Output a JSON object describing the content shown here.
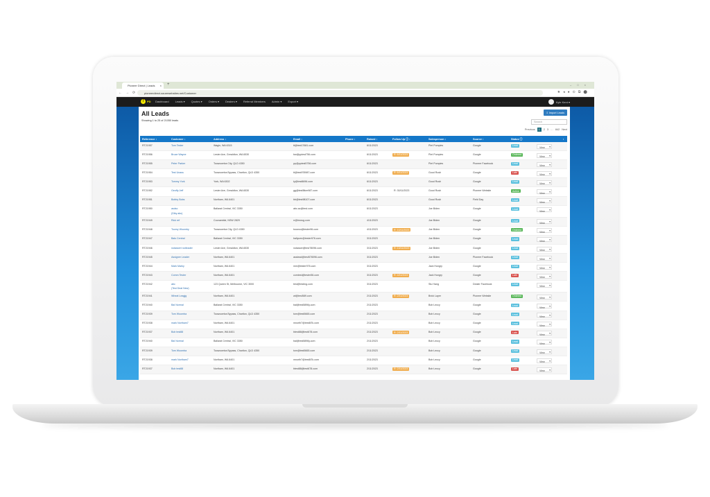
{
  "browser": {
    "tab_title": "Pioneer Direct | Leads",
    "url": "pioneerdirect.azurewebsites.net/Customer"
  },
  "nav": {
    "brand": "PD",
    "items": [
      "Dashboard",
      "Leads ▾",
      "Quotes ▾",
      "Orders ▾",
      "Dealers ▾",
      "Referral Members",
      "Admin ▾",
      "Export ▾"
    ],
    "user": "Kyle Kent ▾"
  },
  "page": {
    "title": "All Leads",
    "showing": "Showing 1 to 25 of 21050 leads",
    "import_label": "Import Leads",
    "search_placeholder": "Search"
  },
  "pager": {
    "prev": "Previous",
    "pages": [
      "1",
      "2",
      "3",
      "…",
      "842"
    ],
    "next": "Next",
    "current": "1"
  },
  "columns": [
    "Reference ↕",
    "Customer ↕",
    "Address ↕",
    "Email ↕",
    "Phone ↕",
    "Raised ↕",
    "Follow Up ⓘ ↕",
    "Salesperson ↕",
    "Source ↕",
    "Status ⓘ"
  ],
  "status_colors": {
    "Lead": "#5bc0de",
    "Ordered": "#5cb85c",
    "Late": "#d9534f",
    "Active": "#5cb85c"
  },
  "view_label": "View",
  "rows": [
    [
      "RT21957",
      "Tom Tester",
      "",
      "Wagin, WA 6315",
      "tt@test17681.com",
      "",
      "6/11/2023",
      "",
      "Piet Pumpies",
      "Google",
      "Lead"
    ],
    [
      "RT21956",
      "Bruce Wayne",
      "",
      "Lester Ave, Geraldton, WA 6530",
      "bw@pptest756.com",
      "",
      "6/11/2023",
      "R: 6/11/2023",
      "Piet Pumpies",
      "Google",
      "Ordered"
    ],
    [
      "RT21955",
      "Peter Parker",
      "",
      "Toowoomba City, QLD 4350",
      "pp@pptest5756.com",
      "",
      "6/11/2023",
      "",
      "Piet Pumpies",
      "Pioneer Facebook",
      "Lead"
    ],
    [
      "RT21954",
      "Test Unass",
      "",
      "Toowoomba Bypass, Charlton, QLD 4350",
      "tt@test978987.com",
      "",
      "6/11/2023",
      "R: 6/11/2023",
      "Good Rush",
      "Google",
      "Late"
    ],
    [
      "RT21953",
      "Tommy York",
      "",
      "York, WA 6302",
      "ty@test8696.com",
      "",
      "6/11/2023",
      "",
      "Good Rush",
      "Google",
      "Lead"
    ],
    [
      "RT21952",
      "Geoffy Jeff",
      "",
      "Lester Ave, Geraldton, WA 6530",
      "gg@test5tkm987.com",
      "",
      "6/11/2023",
      "R: 30/11/2023",
      "Good Rush",
      "Pioneer Website",
      "Active"
    ],
    [
      "RT21951",
      "Bobby Bobs",
      "",
      "Northam, WA 6401",
      "bb@test98107.com",
      "",
      "6/11/2023",
      "",
      "Good Rush",
      "Field Day",
      "Lead"
    ],
    [
      "RT21950",
      "asdsc",
      "(Diby abc)",
      "Ballarat Central, VIC 3350",
      "abc.ac@test.com",
      "",
      "6/11/2023",
      "",
      "Joe Biden",
      "Google",
      "Lead"
    ],
    [
      "RT21949",
      "Rick ref",
      "",
      "Coonamble, NSW 2829",
      "rr@trwrug.com",
      "",
      "4/11/2023",
      "",
      "Joe Biden",
      "Google",
      "Lead"
    ],
    [
      "RT21948",
      "Toomy Woomby",
      "",
      "Toowoomba City, QLD 4350",
      "toowoo@tester96.com",
      "",
      "4/11/2023",
      "R: 10/11/2023",
      "Joe Biden",
      "Google",
      "Ordered"
    ],
    [
      "RT21947",
      "Bals Central",
      "",
      "Ballarat Central, VIC 3350",
      "ballycen@tester976.com",
      "",
      "3/11/2023",
      "",
      "Joe Biden",
      "Google",
      "Lead"
    ],
    [
      "RT21946",
      "notassert notleader",
      "",
      "Lester Ave, Geraldton, WA 6530",
      "notasser@test78096.com",
      "",
      "3/11/2023",
      "R: 13/11/2023",
      "Joe Biden",
      "Google",
      "Lead"
    ],
    [
      "RT21945",
      "Assigner Leader",
      "",
      "Northam, WA 6401",
      "asslead@test578096.com",
      "",
      "3/11/2023",
      "",
      "Joe Biden",
      "Pioneer Facebook",
      "Lead"
    ],
    [
      "RT21944",
      "Mark Marky",
      "",
      "Northam, WA 6401",
      "mm@tester976.com",
      "",
      "3/11/2023",
      "",
      "Jack Hungry",
      "Google",
      "Lead"
    ],
    [
      "RT21943",
      "Comm Tester",
      "",
      "Northam, WA 6401",
      "comtest@tester56.com",
      "",
      "3/11/2023",
      "R: 4/11/2023",
      "Jack Hungry",
      "Google",
      "Late"
    ],
    [
      "RT21942",
      "abc",
      "(Test Deal New)",
      "123 Queen St, Melbourne, VIC 3000",
      "test@testing.com",
      "",
      "3/11/2023",
      "",
      "Stu Hang",
      "Dealer Facebook",
      "Lead"
    ],
    [
      "RT21941",
      "Wheat Leagjg",
      "",
      "Northam, WA 6401",
      "wl@test589.com",
      "",
      "2/11/2023",
      "R: 2/11/2023",
      "Brick Layer",
      "Pioneer Website",
      "Ordered"
    ],
    [
      "RT21940",
      "Bal Normal",
      "",
      "Ballarat Central, VIC 3350",
      "bal@test5896y.com",
      "",
      "2/11/2023",
      "",
      "Bob Leccy",
      "Google",
      "Lead"
    ],
    [
      "RT21939",
      "Tom Woomba",
      "",
      "Toowoomba Bypass, Charlton, QLD 4350",
      "tom@test5665.com",
      "",
      "2/11/2023",
      "",
      "Bob Leccy",
      "Google",
      "Lead"
    ],
    [
      "RT21938",
      "mark Northam7",
      "",
      "Northam, WA 6401",
      "mnorth7@test6l7k.com",
      "",
      "2/11/2023",
      "",
      "Bob Leccy",
      "Google",
      "Lead"
    ],
    [
      "RT21937",
      "Bob test88",
      "",
      "Northam, WA 6401",
      "btest88@test678.com",
      "",
      "2/11/2023",
      "R: 2/11/2023",
      "Bob Leccy",
      "Google",
      "Late"
    ],
    [
      "RT21940",
      "Bal Normal",
      "",
      "Ballarat Central, VIC 3350",
      "bal@test5896y.com",
      "",
      "2/11/2023",
      "",
      "Bob Leccy",
      "Google",
      "Lead"
    ],
    [
      "RT21939",
      "Tom Woomba",
      "",
      "Toowoomba Bypass, Charlton, QLD 4350",
      "tom@test5665.com",
      "",
      "2/11/2023",
      "",
      "Bob Leccy",
      "Google",
      "Lead"
    ],
    [
      "RT21938",
      "mark Northam7",
      "",
      "Northam, WA 6401",
      "mnorth7@test6l7k.com",
      "",
      "2/11/2023",
      "",
      "Bob Leccy",
      "Google",
      "Lead"
    ],
    [
      "RT21937",
      "Bob test88",
      "",
      "Northam, WA 6401",
      "btest88@test678.com",
      "",
      "2/11/2023",
      "R: 2/11/2023",
      "Bob Leccy",
      "Google",
      "Late"
    ]
  ]
}
